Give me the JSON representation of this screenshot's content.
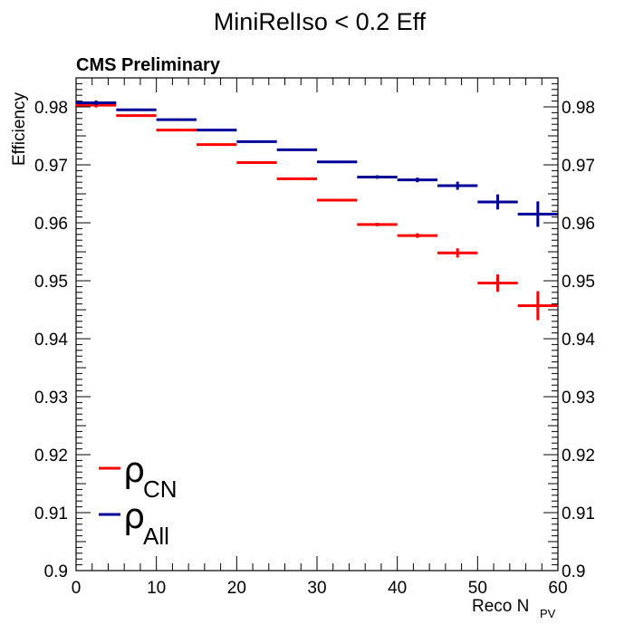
{
  "chart_data": {
    "type": "scatter",
    "title": "MiniRelIso < 0.2 Eff",
    "experiment_label": "CMS Preliminary",
    "xlabel_main": "Reco N",
    "xlabel_sub": "PV",
    "ylabel": "Efficiency",
    "xlim": [
      0,
      60
    ],
    "ylim": [
      0.9,
      0.985
    ],
    "x_ticks": [
      "0",
      "10",
      "20",
      "30",
      "40",
      "50",
      "60"
    ],
    "y_ticks": [
      "0.9",
      "0.91",
      "0.92",
      "0.93",
      "0.94",
      "0.95",
      "0.96",
      "0.97",
      "0.98"
    ],
    "y_ticks_right": [
      "0.9",
      "0.91",
      "0.92",
      "0.93",
      "0.94",
      "0.95",
      "0.96",
      "0.97",
      "0.98"
    ],
    "series": [
      {
        "name": "ρ",
        "subscript": "CN",
        "color": "#ff0000",
        "points": [
          {
            "xlo": 0,
            "xhi": 5,
            "y": 0.9803,
            "err": 0.0004
          },
          {
            "xlo": 5,
            "xhi": 10,
            "y": 0.9785,
            "err": 0.0002
          },
          {
            "xlo": 10,
            "xhi": 15,
            "y": 0.976,
            "err": 0.0002
          },
          {
            "xlo": 15,
            "xhi": 20,
            "y": 0.9735,
            "err": 0.0002
          },
          {
            "xlo": 20,
            "xhi": 25,
            "y": 0.9704,
            "err": 0.0002
          },
          {
            "xlo": 25,
            "xhi": 30,
            "y": 0.9676,
            "err": 0.0002
          },
          {
            "xlo": 30,
            "xhi": 35,
            "y": 0.9639,
            "err": 0.0002
          },
          {
            "xlo": 35,
            "xhi": 40,
            "y": 0.9597,
            "err": 0.0003
          },
          {
            "xlo": 40,
            "xhi": 45,
            "y": 0.9578,
            "err": 0.0004
          },
          {
            "xlo": 45,
            "xhi": 50,
            "y": 0.9548,
            "err": 0.0008
          },
          {
            "xlo": 50,
            "xhi": 55,
            "y": 0.9496,
            "err": 0.0015
          },
          {
            "xlo": 55,
            "xhi": 60,
            "y": 0.9457,
            "err": 0.0025
          }
        ]
      },
      {
        "name": "ρ",
        "subscript": "All",
        "color": "#000099",
        "points": [
          {
            "xlo": 0,
            "xhi": 5,
            "y": 0.9807,
            "err": 0.0004
          },
          {
            "xlo": 5,
            "xhi": 10,
            "y": 0.9795,
            "err": 0.0002
          },
          {
            "xlo": 10,
            "xhi": 15,
            "y": 0.9778,
            "err": 0.0002
          },
          {
            "xlo": 15,
            "xhi": 20,
            "y": 0.976,
            "err": 0.0002
          },
          {
            "xlo": 20,
            "xhi": 25,
            "y": 0.974,
            "err": 0.0002
          },
          {
            "xlo": 25,
            "xhi": 30,
            "y": 0.9726,
            "err": 0.0002
          },
          {
            "xlo": 30,
            "xhi": 35,
            "y": 0.9705,
            "err": 0.0002
          },
          {
            "xlo": 35,
            "xhi": 40,
            "y": 0.9679,
            "err": 0.0003
          },
          {
            "xlo": 40,
            "xhi": 45,
            "y": 0.9674,
            "err": 0.0004
          },
          {
            "xlo": 45,
            "xhi": 50,
            "y": 0.9664,
            "err": 0.0007
          },
          {
            "xlo": 50,
            "xhi": 55,
            "y": 0.9636,
            "err": 0.0013
          },
          {
            "xlo": 55,
            "xhi": 60,
            "y": 0.9615,
            "err": 0.0022
          }
        ]
      }
    ],
    "legend_position": "bottom-left",
    "grid": false
  }
}
